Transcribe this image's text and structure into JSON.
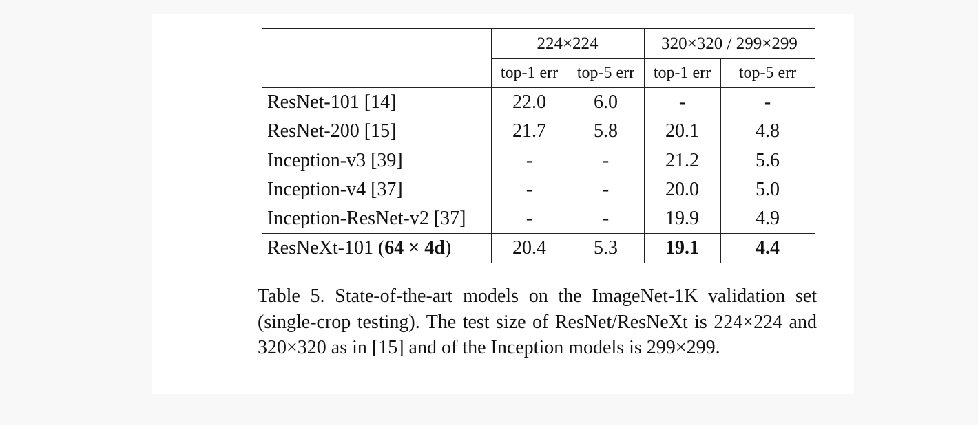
{
  "table": {
    "header_groups": [
      "224×224",
      "320×320 / 299×299"
    ],
    "subheaders": [
      "top-1 err",
      "top-5 err",
      "top-1 err",
      "top-5 err"
    ],
    "rows": [
      {
        "model": "ResNet-101 [14]",
        "values": [
          "22.0",
          "6.0",
          "-",
          "-"
        ]
      },
      {
        "model": "ResNet-200 [15]",
        "values": [
          "21.7",
          "5.8",
          "20.1",
          "4.8"
        ]
      },
      {
        "model": "Inception-v3 [39]",
        "values": [
          "-",
          "-",
          "21.2",
          "5.6"
        ]
      },
      {
        "model": "Inception-v4 [37]",
        "values": [
          "-",
          "-",
          "20.0",
          "5.0"
        ]
      },
      {
        "model": "Inception-ResNet-v2 [37]",
        "values": [
          "-",
          "-",
          "19.9",
          "4.9"
        ]
      },
      {
        "model_prefix": "ResNeXt-101 (",
        "model_bold": "64 × 4d",
        "model_suffix": ")",
        "values": [
          "20.4",
          "5.3",
          "19.1",
          "4.4"
        ]
      }
    ]
  },
  "caption": "Table 5. State-of-the-art models on the ImageNet-1K validation set (single-crop testing).  The test size of ResNet/ResNeXt is 224×224 and 320×320 as in [15] and of the Inception models is 299×299."
}
